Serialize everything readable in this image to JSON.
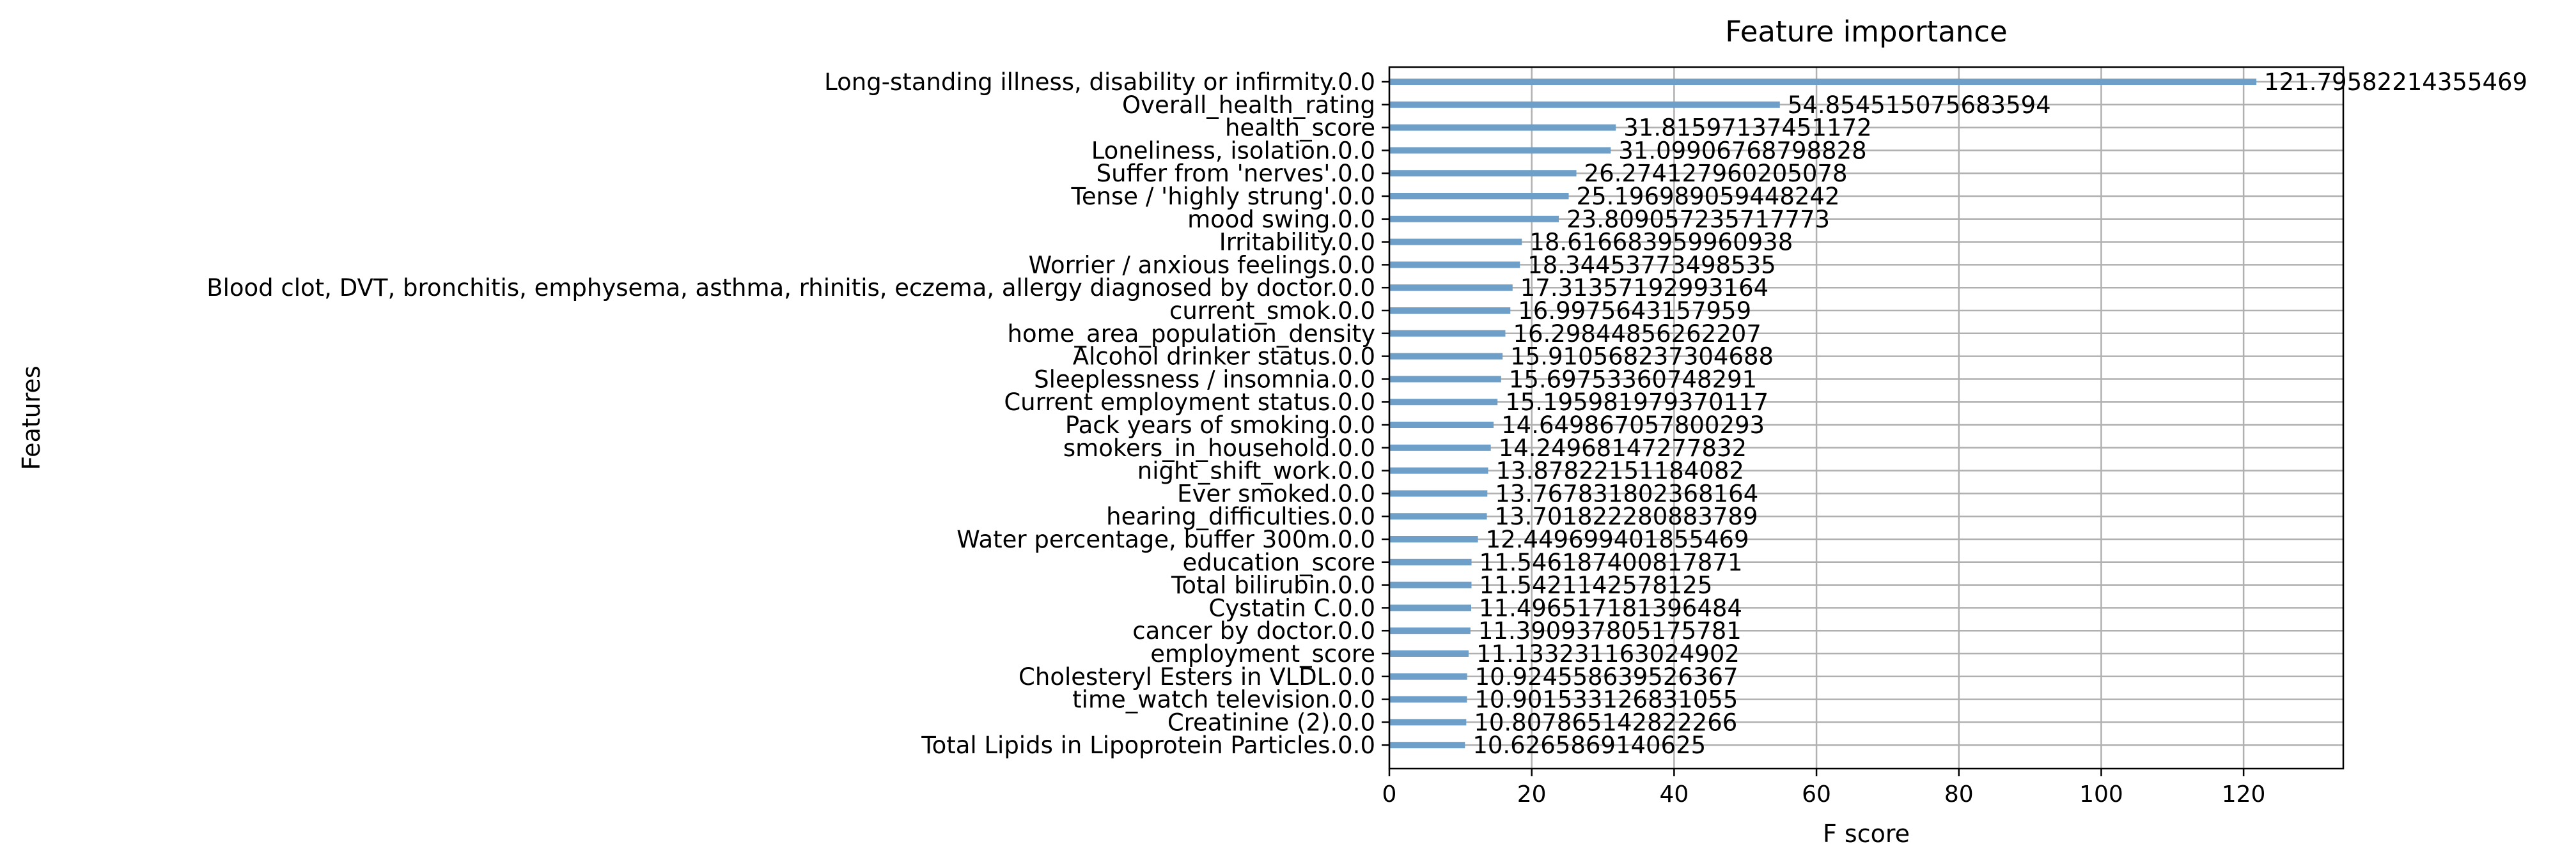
{
  "chart_data": {
    "type": "bar",
    "orientation": "horizontal",
    "title": "Feature importance",
    "xlabel": "F score",
    "ylabel": "Features",
    "xlim": [
      0,
      134
    ],
    "xticks": [
      "0",
      "20",
      "40",
      "60",
      "80",
      "100",
      "120"
    ],
    "grid": true,
    "bar_color": "#6e9fc9",
    "categories": [
      "Long-standing illness, disability or infirmity.0.0",
      "Overall_health_rating",
      "health_score",
      "Loneliness, isolation.0.0",
      "Suffer from 'nerves'.0.0",
      "Tense / 'highly strung'.0.0",
      "mood swing.0.0",
      "Irritability.0.0",
      "Worrier / anxious feelings.0.0",
      "Blood clot, DVT, bronchitis, emphysema, asthma, rhinitis, eczema, allergy diagnosed by doctor.0.0",
      "current_smok.0.0",
      "home_area_population_density",
      "Alcohol drinker status.0.0",
      "Sleeplessness / insomnia.0.0",
      "Current employment status.0.0",
      "Pack years of smoking.0.0",
      "smokers_in_household.0.0",
      "night_shift_work.0.0",
      "Ever smoked.0.0",
      "hearing_difficulties.0.0",
      "Water percentage, buffer 300m.0.0",
      "education_score",
      "Total bilirubin.0.0",
      "Cystatin C.0.0",
      "cancer by doctor.0.0",
      "employment_score",
      "Cholesteryl Esters in VLDL.0.0",
      "time_watch television.0.0",
      "Creatinine (2).0.0",
      "Total Lipids in Lipoprotein Particles.0.0"
    ],
    "values": [
      121.79582214355469,
      54.854515075683594,
      31.81597137451172,
      31.09906768798828,
      26.274127960205078,
      25.196989059448242,
      23.809057235717773,
      18.616683959960938,
      18.34453773498535,
      17.31357192993164,
      16.9975643157959,
      16.29844856262207,
      15.910568237304688,
      15.69753360748291,
      15.195981979370117,
      14.649867057800293,
      14.24968147277832,
      13.87822151184082,
      13.767831802368164,
      13.701822280883789,
      12.449699401855469,
      11.546187400817871,
      11.5421142578125,
      11.496517181396484,
      11.390937805175781,
      11.133231163024902,
      10.924558639526367,
      10.901533126831055,
      10.807865142822266,
      10.6265869140625
    ],
    "value_labels": [
      "121.79582214355469",
      "54.854515075683594",
      "31.81597137451172",
      "31.09906768798828",
      "26.274127960205078",
      "25.196989059448242",
      "23.809057235717773",
      "18.616683959960938",
      "18.34453773498535",
      "17.31357192993164",
      "16.9975643157959",
      "16.29844856262207",
      "15.910568237304688",
      "15.69753360748291",
      "15.195981979370117",
      "14.649867057800293",
      "14.24968147277832",
      "13.87822151184082",
      "13.767831802368164",
      "13.701822280883789",
      "12.449699401855469",
      "11.546187400817871",
      "11.5421142578125",
      "11.496517181396484",
      "11.390937805175781",
      "11.133231163024902",
      "10.924558639526367",
      "10.901533126831055",
      "10.807865142822266",
      "10.6265869140625"
    ]
  }
}
